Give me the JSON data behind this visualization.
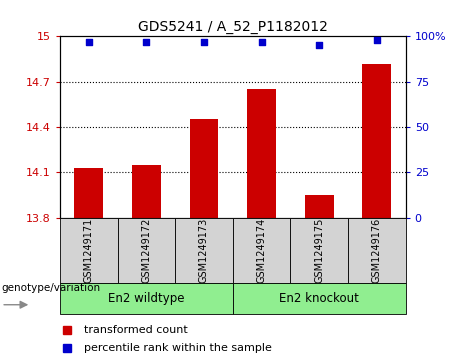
{
  "title": "GDS5241 / A_52_P1182012",
  "samples": [
    "GSM1249171",
    "GSM1249172",
    "GSM1249173",
    "GSM1249174",
    "GSM1249175",
    "GSM1249176"
  ],
  "bar_values": [
    14.13,
    14.15,
    14.45,
    14.65,
    13.95,
    14.82
  ],
  "percentile_values": [
    97,
    97,
    97,
    97,
    95,
    98
  ],
  "ylim_left": [
    13.8,
    15.0
  ],
  "ylim_right": [
    0,
    100
  ],
  "yticks_left": [
    13.8,
    14.1,
    14.4,
    14.7,
    15.0
  ],
  "ytick_labels_left": [
    "13.8",
    "14.1",
    "14.4",
    "14.7",
    "15"
  ],
  "yticks_right": [
    0,
    25,
    50,
    75,
    100
  ],
  "ytick_labels_right": [
    "0",
    "25",
    "50",
    "75",
    "100%"
  ],
  "hlines": [
    14.1,
    14.4,
    14.7
  ],
  "bar_color": "#cc0000",
  "dot_color": "#0000cc",
  "bar_bottom": 13.8,
  "groups": [
    {
      "label": "En2 wildtype",
      "indices": [
        0,
        1,
        2
      ],
      "color": "#90ee90"
    },
    {
      "label": "En2 knockout",
      "indices": [
        3,
        4,
        5
      ],
      "color": "#90ee90"
    }
  ],
  "genotype_label": "genotype/variation",
  "legend_items": [
    {
      "label": "transformed count",
      "color": "#cc0000"
    },
    {
      "label": "percentile rank within the sample",
      "color": "#0000cc"
    }
  ],
  "tick_color_left": "#cc0000",
  "tick_color_right": "#0000cc",
  "background_color": "#ffffff",
  "plot_bg_color": "#ffffff",
  "sample_box_color": "#d3d3d3",
  "green_color": "#90ee90"
}
